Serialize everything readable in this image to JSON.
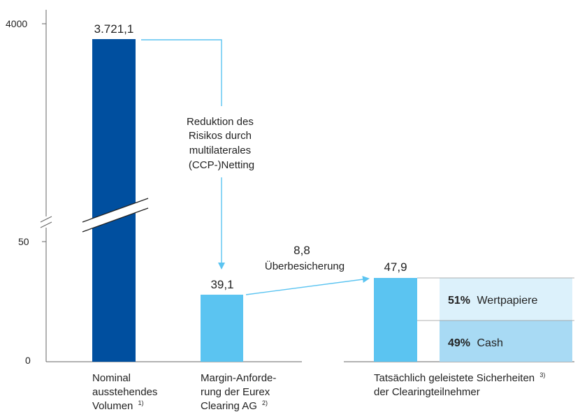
{
  "chart_data": {
    "type": "bar",
    "y_ticks": [
      "4000",
      "50",
      "0"
    ],
    "bars": [
      {
        "label": "3.721,1",
        "value": 3721.1,
        "color": "#004f9f",
        "category": [
          "Nominal",
          "ausstehendes",
          "Volumen"
        ],
        "footnote": "1)"
      },
      {
        "label": "39,1",
        "value": 39.1,
        "color": "#5bc4f1",
        "category": [
          "Margin-Anforde-",
          "rung der Eurex",
          "Clearing AG"
        ],
        "footnote": "2)"
      },
      {
        "label": "47,9",
        "value": 47.9,
        "color": "#5bc4f1",
        "category": [
          "Tatsächlich geleistete Sicherheiten",
          "der Clearingteilnehmer"
        ],
        "footnote": "3)"
      }
    ],
    "breakdown": [
      {
        "pct": "51%",
        "label": "Wertpapiere",
        "share": 0.51,
        "color": "#dcf1fb"
      },
      {
        "pct": "49%",
        "label": "Cash",
        "share": 0.49,
        "color": "#a8daf4"
      }
    ],
    "annotations": {
      "netting": [
        "Reduktion des",
        "Risikos durch",
        "multilaterales",
        "(CCP-)Netting"
      ],
      "over_value": "8,8",
      "over_label": "Überbesicherung"
    },
    "accent_color": "#5bc4f1",
    "dark_color": "#004f9f"
  }
}
